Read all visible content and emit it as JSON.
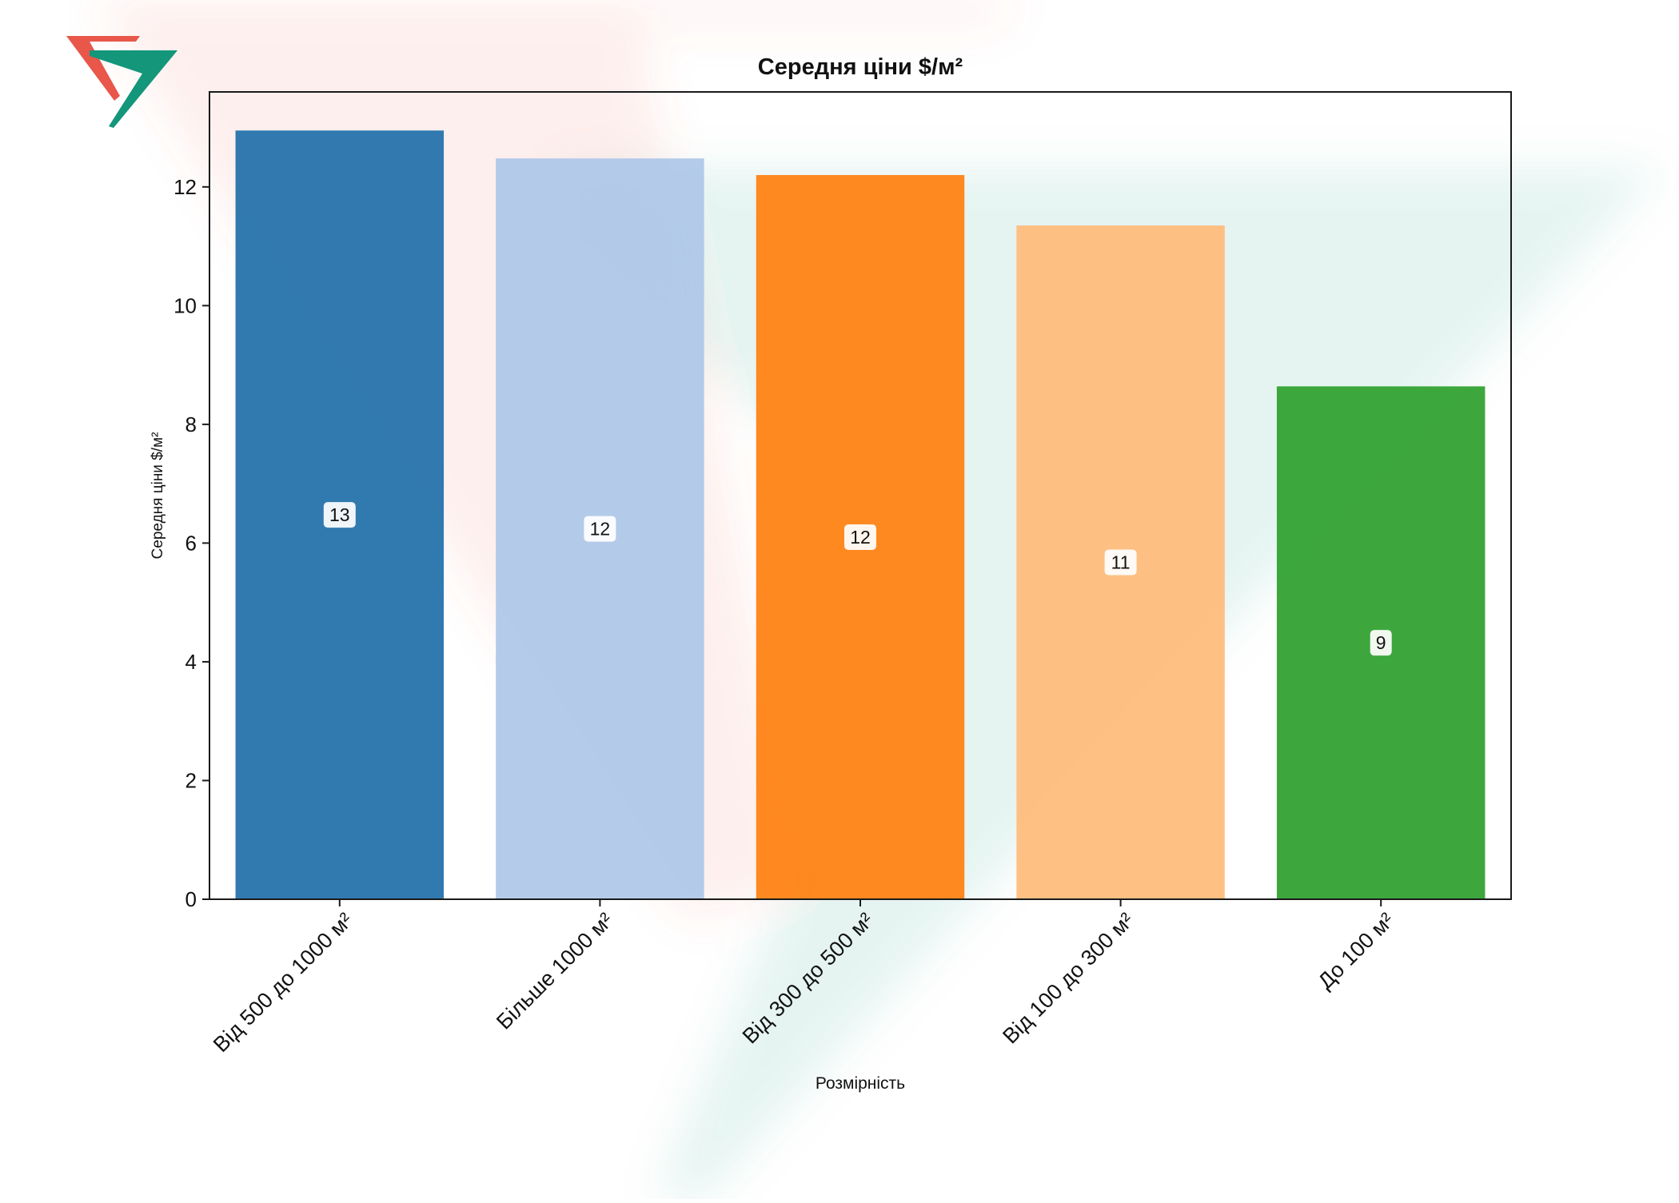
{
  "chart_data": {
    "type": "bar",
    "title": "Середня ціни $/м²",
    "xlabel": "Розмірність",
    "ylabel": "Середня ціни $/м²",
    "categories": [
      "Від 500 до 1000 м²",
      "Більше 1000 м²",
      "Від 300 до 500 м²",
      "Від 100 до 300 м²",
      "До 100 м²"
    ],
    "values": [
      12.95,
      12.48,
      12.2,
      11.35,
      8.64
    ],
    "data_labels": [
      "13",
      "12",
      "12",
      "11",
      "9"
    ],
    "bar_colors": [
      "#1f6fa8",
      "#aec7e8",
      "#ff7f0e",
      "#ffbb78",
      "#2ca02c"
    ],
    "ylim": [
      0,
      13.6
    ],
    "yticks": [
      0,
      2,
      4,
      6,
      8,
      10,
      12
    ],
    "grid": false,
    "legend": "none"
  },
  "watermark": {
    "logo_icon": "company-logo-icon",
    "colors": {
      "red": "#e8574a",
      "green": "#14967a"
    }
  }
}
